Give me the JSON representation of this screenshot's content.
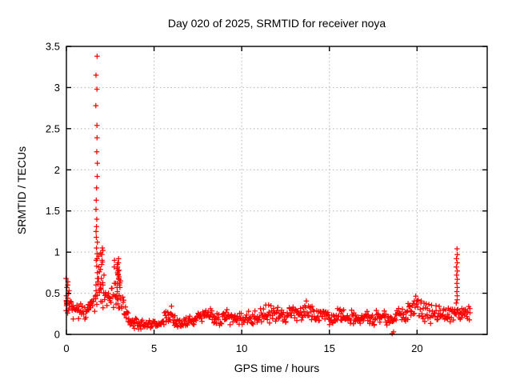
{
  "chart_data": {
    "type": "scatter",
    "title": "Day 020 of 2025, SRMTID for receiver noya",
    "xlabel": "GPS time / hours",
    "ylabel": "SRMTID / TECUs",
    "xlim": [
      0,
      24
    ],
    "ylim": [
      0,
      3.5
    ],
    "xticks": [
      0,
      5,
      10,
      15,
      20
    ],
    "xtick_labels": [
      "0",
      "5",
      "10",
      "15",
      "20"
    ],
    "yticks": [
      0,
      0.5,
      1,
      1.5,
      2,
      2.5,
      3,
      3.5
    ],
    "ytick_labels": [
      "0",
      "0.5",
      "1",
      "1.5",
      "2",
      "2.5",
      "3",
      "3.5"
    ],
    "grid": true,
    "legend": "none",
    "marker": "plus",
    "marker_color": "#ff0000",
    "grid_color": "#b3b3b3",
    "axis_color": "#000000",
    "background": "#ffffff",
    "seed": 20250120,
    "spikes": [
      {
        "name": "main-spike",
        "x": 1.73,
        "x_jitter": 0.05,
        "values": [
          3.38,
          3.15,
          2.98,
          2.78,
          2.54,
          2.39,
          2.22,
          2.08,
          1.92,
          1.78,
          1.63,
          1.52,
          1.4,
          1.31,
          1.25,
          1.18,
          1.12,
          1.05,
          0.98,
          0.9,
          0.83,
          0.75,
          0.68,
          0.6,
          0.53
        ]
      },
      {
        "name": "morning-spike",
        "x": 2.95,
        "x_jitter": 0.06,
        "values": [
          0.92,
          0.87,
          0.82,
          0.77,
          0.72,
          0.67,
          0.62,
          0.57,
          0.52,
          0.47,
          0.42,
          0.37,
          0.32
        ]
      },
      {
        "name": "evening-spike",
        "x": 22.27,
        "x_jitter": 0.04,
        "values": [
          1.04,
          0.97,
          0.92,
          0.87,
          0.82,
          0.77,
          0.72,
          0.67,
          0.62,
          0.57,
          0.52,
          0.47,
          0.42,
          0.38
        ]
      }
    ],
    "clusters": [
      {
        "name": "start-cluster",
        "x": 0.07,
        "x_jitter": 0.1,
        "values": [
          0.68,
          0.64,
          0.6,
          0.57,
          0.53,
          0.5,
          0.47,
          0.44,
          0.41,
          0.38,
          0.35,
          0.32,
          0.29,
          0.26
        ]
      },
      {
        "name": "main-spike-shoulder",
        "x": 1.95,
        "x_jitter": 0.22,
        "values": [
          1.05,
          1.02,
          0.99,
          0.97,
          0.95,
          0.92,
          0.9,
          0.88,
          0.85,
          0.82,
          0.79,
          0.76,
          0.72,
          0.68,
          0.64,
          0.6,
          0.56
        ]
      },
      {
        "name": "morning-spike-shoulder",
        "x": 2.9,
        "x_jitter": 0.2,
        "values": [
          0.9,
          0.87,
          0.85,
          0.82,
          0.8,
          0.78,
          0.75,
          0.73,
          0.7,
          0.68,
          0.65,
          0.62,
          0.6,
          0.57
        ]
      }
    ],
    "outliers": [
      [
        18.58,
        0.01
      ],
      [
        18.66,
        0.03
      ]
    ],
    "band": {
      "x_start": 0.0,
      "x_end": 23.05,
      "points_per_hour": 30,
      "envelope": [
        [
          0.0,
          0.4,
          0.18
        ],
        [
          0.3,
          0.32,
          0.1
        ],
        [
          0.8,
          0.28,
          0.09
        ],
        [
          1.5,
          0.35,
          0.1
        ],
        [
          1.9,
          0.55,
          0.2
        ],
        [
          2.2,
          0.42,
          0.12
        ],
        [
          2.6,
          0.45,
          0.12
        ],
        [
          3.0,
          0.55,
          0.2
        ],
        [
          3.3,
          0.3,
          0.1
        ],
        [
          3.6,
          0.15,
          0.06
        ],
        [
          4.5,
          0.12,
          0.05
        ],
        [
          5.4,
          0.13,
          0.05
        ],
        [
          5.9,
          0.26,
          0.1
        ],
        [
          6.4,
          0.14,
          0.05
        ],
        [
          7.2,
          0.16,
          0.06
        ],
        [
          8.0,
          0.26,
          0.09
        ],
        [
          8.6,
          0.18,
          0.07
        ],
        [
          9.05,
          0.24,
          0.08
        ],
        [
          9.6,
          0.18,
          0.07
        ],
        [
          10.5,
          0.2,
          0.08
        ],
        [
          11.0,
          0.22,
          0.08
        ],
        [
          11.9,
          0.28,
          0.1
        ],
        [
          12.4,
          0.2,
          0.08
        ],
        [
          12.9,
          0.28,
          0.1
        ],
        [
          13.3,
          0.22,
          0.08
        ],
        [
          13.75,
          0.3,
          0.1
        ],
        [
          14.2,
          0.2,
          0.08
        ],
        [
          14.6,
          0.27,
          0.09
        ],
        [
          15.2,
          0.2,
          0.08
        ],
        [
          16.0,
          0.22,
          0.08
        ],
        [
          17.0,
          0.2,
          0.08
        ],
        [
          18.0,
          0.22,
          0.08
        ],
        [
          18.6,
          0.18,
          0.07
        ],
        [
          19.2,
          0.25,
          0.09
        ],
        [
          19.8,
          0.32,
          0.11
        ],
        [
          20.3,
          0.33,
          0.13
        ],
        [
          20.8,
          0.25,
          0.12
        ],
        [
          21.4,
          0.25,
          0.1
        ],
        [
          22.0,
          0.25,
          0.1
        ],
        [
          22.6,
          0.25,
          0.1
        ],
        [
          23.05,
          0.28,
          0.08
        ]
      ]
    }
  }
}
